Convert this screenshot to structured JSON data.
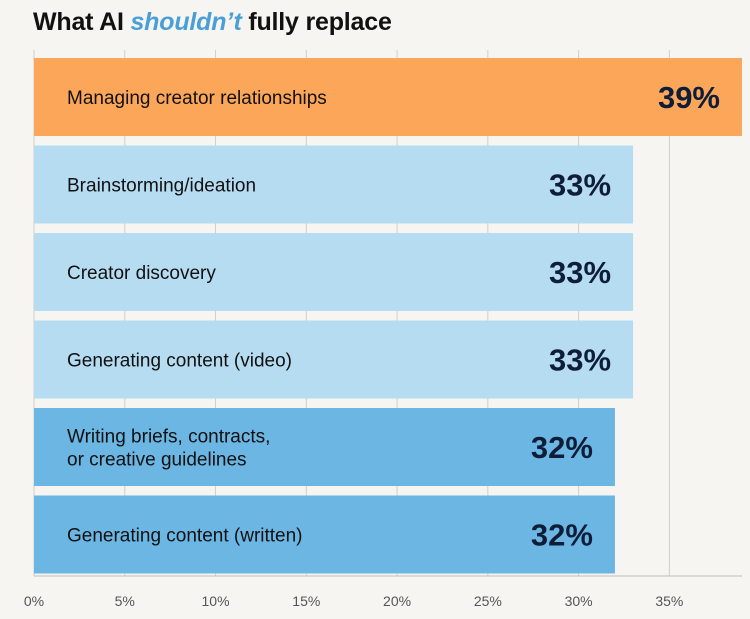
{
  "chart_data": {
    "type": "bar",
    "orientation": "horizontal",
    "title_parts": [
      "What AI ",
      "shouldn’t",
      " fully replace"
    ],
    "categories": [
      "Managing creator relationships",
      "Brainstorming/ideation",
      "Creator discovery",
      "Generating content (video)",
      "Writing briefs, contracts, or creative guidelines",
      "Generating content (written)"
    ],
    "category_lines": [
      [
        "Managing creator relationships"
      ],
      [
        "Brainstorming/ideation"
      ],
      [
        "Creator discovery"
      ],
      [
        "Generating content (video)"
      ],
      [
        "Writing briefs, contracts,",
        "or creative guidelines"
      ],
      [
        "Generating content (written)"
      ]
    ],
    "values": [
      39,
      33,
      33,
      33,
      32,
      32
    ],
    "value_labels": [
      "39%",
      "33%",
      "33%",
      "33%",
      "32%",
      "32%"
    ],
    "bar_colors": [
      "#fca65a",
      "#b6dcf1",
      "#b6dcf1",
      "#b6dcf1",
      "#6bb6e3",
      "#6bb6e3"
    ],
    "xlim": [
      0,
      39
    ],
    "x_ticks": [
      0,
      5,
      10,
      15,
      20,
      25,
      30,
      35
    ],
    "x_tick_labels": [
      "0%",
      "5%",
      "10%",
      "15%",
      "20%",
      "25%",
      "30%",
      "35%"
    ],
    "xlabel": "",
    "ylabel": "",
    "grid": true
  }
}
